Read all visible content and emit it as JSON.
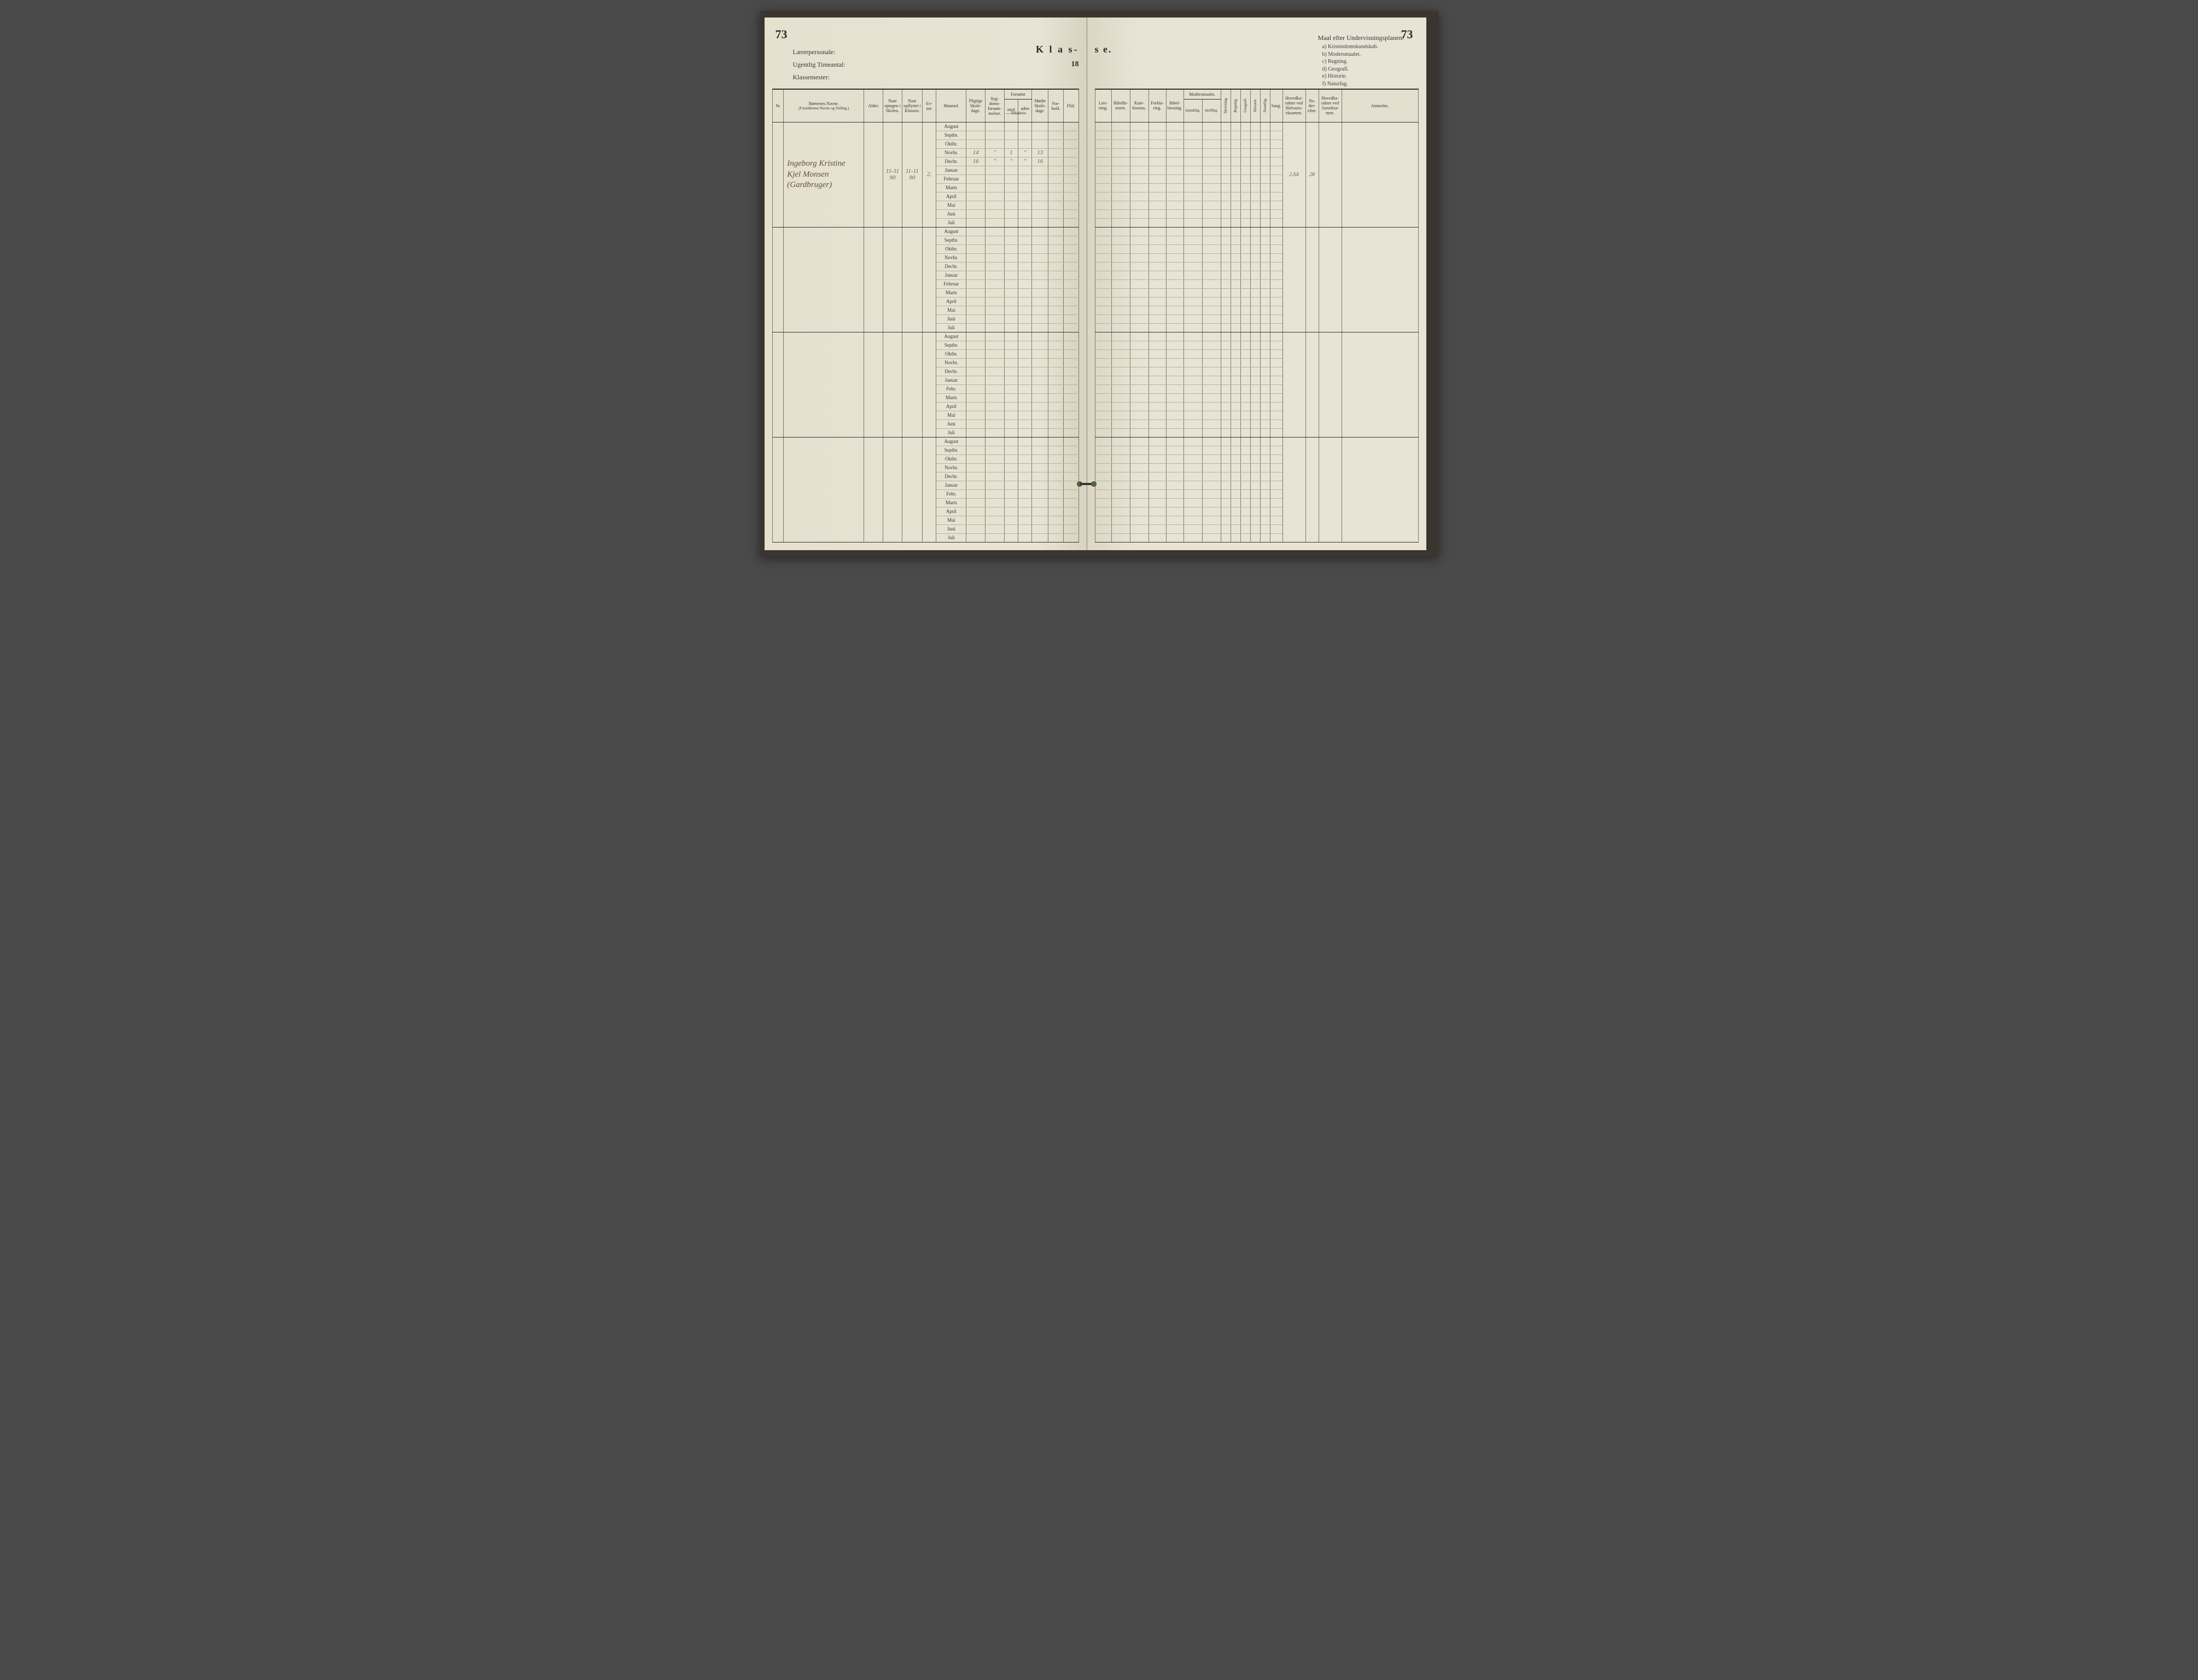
{
  "page_number_left": "73",
  "page_number_right": "73",
  "left_header": {
    "line1": "Lærerpersonale:",
    "line2": "Ugentlig Timeantal:",
    "line3": "Klassemester:"
  },
  "klasse_label": "K l a s-",
  "year_prefix": "18",
  "se_label": "s e.",
  "plan": {
    "title": "Maal efter Undervisningsplanen:",
    "items": [
      "a) Kristendomskundskab.",
      "b) Modersmaalet.",
      "c) Regning.",
      "d) Geografi.",
      "e) Historie.",
      "f) Naturfag."
    ]
  },
  "left_columns": {
    "no": "№",
    "name": "Børnenes Navne.",
    "name_sub": "(Forældrenes Navne og Stilling.)",
    "alder": "Alder.",
    "optagen": "Naar optagen i Skolen.",
    "opflyttet": "Naar opflyttet i Klassen.",
    "evner": "Ev-ner.",
    "maaned": "Maaned.",
    "pligtige": "Pligtige Skole-dage.",
    "sygdoms": "Syg-doms-forsøm-melser.",
    "forsømt": "Forsømt",
    "forsømt_med": "med",
    "forsømt_uden": "uden",
    "forsømt_sub": "Tilladelse.",
    "modte": "Mødte Skole-dage.",
    "forhold": "For-hold.",
    "flid": "Flid."
  },
  "right_columns": {
    "laesning": "Læs-ning.",
    "bibelhist": "Bibelhi-storie.",
    "katekismus": "Kate-kismus.",
    "forklaring": "Forkla-ring.",
    "bibellaesning": "Bibel-læsning.",
    "modersmaalet": "Modersmaalet,",
    "mundtlig": "mundtlig.",
    "skriftlig": "skriftlig.",
    "skrivning": "Skrivning.",
    "regning": "Regning.",
    "geografi": "Geografi.",
    "historie": "Historie.",
    "naturfag": "Naturfag.",
    "sang": "Sang.",
    "hovedkar1": "Hovedka-rakter ved Halvaars-eksamen.",
    "no_der": "No. der-efter.",
    "hovedkar2": "Hovedka-rakter ved Aarseksa-men.",
    "anmerkn": "Anmerkn."
  },
  "months": [
    "August",
    "Septbr.",
    "Oktbr.",
    "Novbr.",
    "Decbr.",
    "Januar",
    "Februar",
    "Marts",
    "April",
    "Mai",
    "Juni",
    "Juli"
  ],
  "months3": [
    "August",
    "Septbr.",
    "Oktbr.",
    "Novbr.",
    "Decbr.",
    "Januar",
    "Febr.",
    "Marts",
    "April",
    "Mai",
    "Juni",
    "Juli"
  ],
  "student": {
    "name_line1": "Ingeborg Kristine",
    "name_line2": "Kjel Monsen",
    "name_line3": "(Gardbruger)",
    "optagen": "11-11 90",
    "opflyttet": "11-11 90",
    "evner": "2.",
    "novbr": {
      "pligtige": "14",
      "syg": "\"",
      "med": "1",
      "uden": "\"",
      "modte": "13"
    },
    "decbr": {
      "pligtige": "16",
      "syg": "\"",
      "med": "\"",
      "uden": "\"",
      "modte": "16"
    },
    "hovedkar": "2.64",
    "no_efter": "28"
  }
}
